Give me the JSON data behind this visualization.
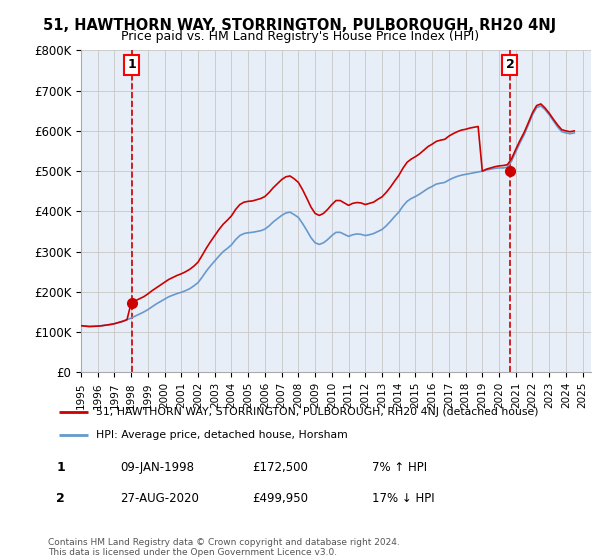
{
  "title": "51, HAWTHORN WAY, STORRINGTON, PULBOROUGH, RH20 4NJ",
  "subtitle": "Price paid vs. HM Land Registry's House Price Index (HPI)",
  "ylabel_ticks": [
    "£0",
    "£100K",
    "£200K",
    "£300K",
    "£400K",
    "£500K",
    "£600K",
    "£700K",
    "£800K"
  ],
  "ytick_vals": [
    0,
    100000,
    200000,
    300000,
    400000,
    500000,
    600000,
    700000,
    800000
  ],
  "ylim": [
    0,
    800000
  ],
  "xlim_start": 1995.0,
  "xlim_end": 2025.5,
  "sale1": {
    "date_label": "09-JAN-1998",
    "price": 172500,
    "year": 1998.03,
    "label": "1",
    "hpi_note": "7% ↑ HPI"
  },
  "sale2": {
    "date_label": "27-AUG-2020",
    "price": 499950,
    "year": 2020.65,
    "label": "2",
    "hpi_note": "17% ↓ HPI"
  },
  "legend_line1": "51, HAWTHORN WAY, STORRINGTON, PULBOROUGH, RH20 4NJ (detached house)",
  "legend_line2": "HPI: Average price, detached house, Horsham",
  "note1_label": "1",
  "note1_date": "09-JAN-1998",
  "note1_price": "£172,500",
  "note1_hpi": "7% ↑ HPI",
  "note2_label": "2",
  "note2_date": "27-AUG-2020",
  "note2_price": "£499,950",
  "note2_hpi": "17% ↓ HPI",
  "copyright": "Contains HM Land Registry data © Crown copyright and database right 2024.\nThis data is licensed under the Open Government Licence v3.0.",
  "line_color_red": "#cc0000",
  "line_color_blue": "#6699cc",
  "bg_color": "#ffffff",
  "chart_bg": "#e8eef8",
  "grid_color": "#cccccc",
  "hpi_data": {
    "years": [
      1995.0,
      1995.25,
      1995.5,
      1995.75,
      1996.0,
      1996.25,
      1996.5,
      1996.75,
      1997.0,
      1997.25,
      1997.5,
      1997.75,
      1998.0,
      1998.25,
      1998.5,
      1998.75,
      1999.0,
      1999.25,
      1999.5,
      1999.75,
      2000.0,
      2000.25,
      2000.5,
      2000.75,
      2001.0,
      2001.25,
      2001.5,
      2001.75,
      2002.0,
      2002.25,
      2002.5,
      2002.75,
      2003.0,
      2003.25,
      2003.5,
      2003.75,
      2004.0,
      2004.25,
      2004.5,
      2004.75,
      2005.0,
      2005.25,
      2005.5,
      2005.75,
      2006.0,
      2006.25,
      2006.5,
      2006.75,
      2007.0,
      2007.25,
      2007.5,
      2007.75,
      2008.0,
      2008.25,
      2008.5,
      2008.75,
      2009.0,
      2009.25,
      2009.5,
      2009.75,
      2010.0,
      2010.25,
      2010.5,
      2010.75,
      2011.0,
      2011.25,
      2011.5,
      2011.75,
      2012.0,
      2012.25,
      2012.5,
      2012.75,
      2013.0,
      2013.25,
      2013.5,
      2013.75,
      2014.0,
      2014.25,
      2014.5,
      2014.75,
      2015.0,
      2015.25,
      2015.5,
      2015.75,
      2016.0,
      2016.25,
      2016.5,
      2016.75,
      2017.0,
      2017.25,
      2017.5,
      2017.75,
      2018.0,
      2018.25,
      2018.5,
      2018.75,
      2019.0,
      2019.25,
      2019.5,
      2019.75,
      2020.0,
      2020.25,
      2020.5,
      2020.75,
      2021.0,
      2021.25,
      2021.5,
      2021.75,
      2022.0,
      2022.25,
      2022.5,
      2022.75,
      2023.0,
      2023.25,
      2023.5,
      2023.75,
      2024.0,
      2024.25,
      2024.5
    ],
    "hpi_vals": [
      116000,
      115000,
      114000,
      114500,
      115000,
      116000,
      117500,
      119000,
      121000,
      124000,
      127000,
      131000,
      135000,
      140000,
      145000,
      150000,
      156000,
      163000,
      170000,
      176000,
      182000,
      188000,
      192000,
      196000,
      199000,
      203000,
      208000,
      215000,
      223000,
      237000,
      252000,
      265000,
      277000,
      289000,
      300000,
      308000,
      317000,
      330000,
      340000,
      345000,
      347000,
      348000,
      350000,
      352000,
      356000,
      364000,
      374000,
      382000,
      390000,
      396000,
      398000,
      392000,
      385000,
      370000,
      353000,
      335000,
      322000,
      318000,
      322000,
      330000,
      340000,
      348000,
      348000,
      343000,
      338000,
      342000,
      344000,
      343000,
      340000,
      342000,
      345000,
      350000,
      355000,
      364000,
      375000,
      387000,
      398000,
      413000,
      425000,
      432000,
      437000,
      443000,
      450000,
      457000,
      462000,
      468000,
      470000,
      472000,
      478000,
      483000,
      487000,
      490000,
      492000,
      494000,
      496000,
      498000,
      500000,
      503000,
      505000,
      507000,
      508000,
      508000,
      510000,
      525000,
      548000,
      570000,
      590000,
      615000,
      640000,
      658000,
      662000,
      653000,
      640000,
      625000,
      610000,
      598000,
      595000,
      593000,
      595000
    ],
    "price_vals": [
      116000,
      115000,
      114000,
      114500,
      115000,
      116000,
      117500,
      119000,
      121000,
      124000,
      127000,
      131000,
      172500,
      178000,
      183000,
      188000,
      195000,
      203000,
      210000,
      217000,
      224000,
      231000,
      236000,
      241000,
      245000,
      250000,
      256000,
      264000,
      274000,
      291000,
      309000,
      325000,
      340000,
      355000,
      368000,
      378000,
      389000,
      405000,
      417000,
      423000,
      425000,
      426000,
      429000,
      432000,
      437000,
      447000,
      459000,
      469000,
      479000,
      486000,
      488000,
      481000,
      472000,
      454000,
      433000,
      411000,
      395000,
      390000,
      395000,
      405000,
      417000,
      427000,
      427000,
      421000,
      415000,
      420000,
      422000,
      421000,
      417000,
      420000,
      423000,
      430000,
      436000,
      447000,
      460000,
      475000,
      489000,
      507000,
      522000,
      530000,
      536000,
      543000,
      552000,
      561000,
      567000,
      574000,
      577000,
      579000,
      587000,
      593000,
      598000,
      602000,
      604000,
      607000,
      609000,
      611000,
      499950,
      505000,
      508000,
      511000,
      513000,
      514000,
      516000,
      531000,
      554000,
      576000,
      596000,
      620000,
      645000,
      663000,
      667000,
      657000,
      644000,
      629000,
      615000,
      603000,
      600000,
      598000,
      600000
    ]
  }
}
